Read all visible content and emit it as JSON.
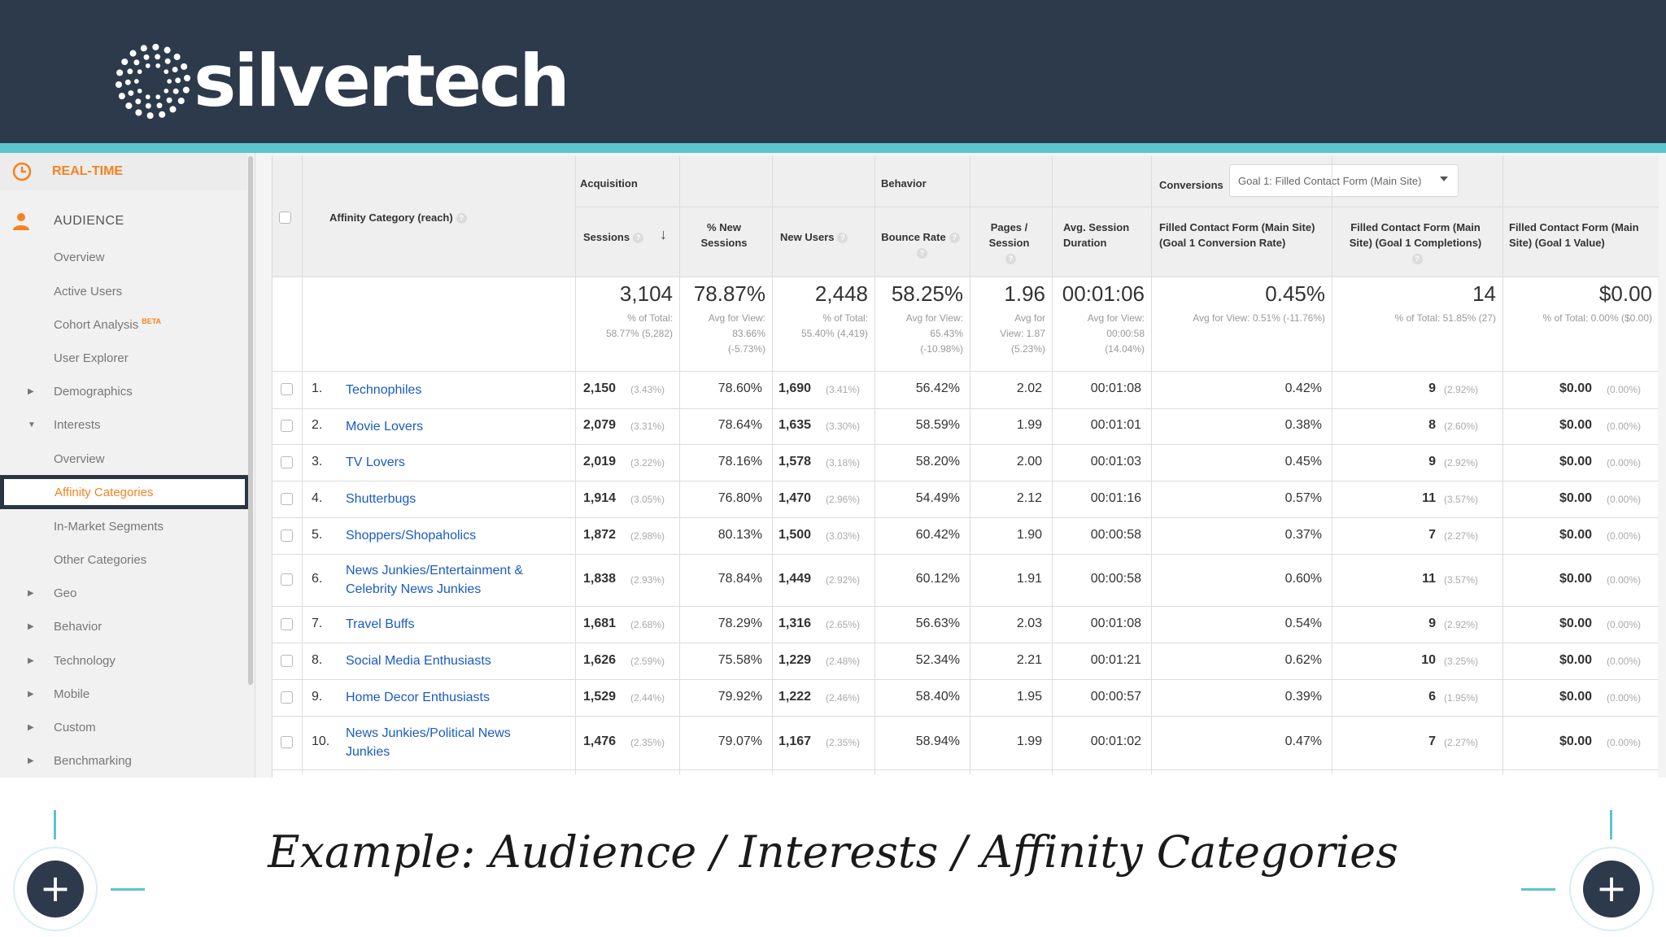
{
  "brand": {
    "name": "silvertech"
  },
  "caption": "Example: Audience / Interests / Affinity Categories",
  "colors": {
    "header_bg": "#2d3a4b",
    "accent_teal": "#5bc4cc",
    "ga_orange": "#f6821f",
    "link_blue": "#1a5bc4"
  },
  "sidebar": {
    "realtime": {
      "label": "REAL-TIME",
      "icon": "clock-icon"
    },
    "audience": {
      "label": "AUDIENCE",
      "icon": "person-icon"
    },
    "beta": "BETA",
    "items": [
      {
        "label": "Overview",
        "expander": false
      },
      {
        "label": "Active Users",
        "expander": false
      },
      {
        "label": "Cohort Analysis",
        "expander": false,
        "beta": true
      },
      {
        "label": "User Explorer",
        "expander": false
      },
      {
        "label": "Demographics",
        "expander": "collapsed"
      },
      {
        "label": "Interests",
        "expander": "expanded"
      },
      {
        "label": "Overview",
        "expander": false
      },
      {
        "label": "Affinity Categories",
        "expander": false,
        "selected": true
      },
      {
        "label": "In-Market Segments",
        "expander": false
      },
      {
        "label": "Other Categories",
        "expander": false
      },
      {
        "label": "Geo",
        "expander": "collapsed"
      },
      {
        "label": "Behavior",
        "expander": "collapsed"
      },
      {
        "label": "Technology",
        "expander": "collapsed"
      },
      {
        "label": "Mobile",
        "expander": "collapsed"
      },
      {
        "label": "Custom",
        "expander": "collapsed"
      },
      {
        "label": "Benchmarking",
        "expander": "collapsed"
      }
    ]
  },
  "table": {
    "dimension_header": "Affinity Category (reach)",
    "groups": {
      "acquisition": "Acquisition",
      "behavior": "Behavior",
      "conversions": "Conversions"
    },
    "goal_select": "Goal 1: Filled Contact Form (Main Site)",
    "columns": {
      "sessions": "Sessions",
      "new_sessions": [
        "% New",
        "Sessions"
      ],
      "new_users": "New Users",
      "bounce_rate": "Bounce Rate",
      "pages_session": [
        "Pages /",
        "Session"
      ],
      "avg_duration": [
        "Avg. Session",
        "Duration"
      ],
      "conv_rate": [
        "Filled Contact Form (Main Site)",
        "(Goal 1 Conversion Rate)"
      ],
      "completions": [
        "Filled Contact Form (Main",
        "Site) (Goal 1 Completions)"
      ],
      "value": [
        "Filled Contact Form (Main",
        "Site) (Goal 1 Value)"
      ]
    },
    "totals": {
      "sessions": "3,104",
      "sessions_sub": [
        "% of Total:",
        "58.77% (5,282)"
      ],
      "new_sessions": "78.87%",
      "new_sessions_sub": [
        "Avg for View:",
        "83.66%",
        "(-5.73%)"
      ],
      "new_users": "2,448",
      "new_users_sub": [
        "% of Total:",
        "55.40% (4,419)"
      ],
      "bounce_rate": "58.25%",
      "bounce_rate_sub": [
        "Avg for View:",
        "65.43%",
        "(-10.98%)"
      ],
      "pages_session": "1.96",
      "pages_session_sub": [
        "Avg for",
        "View: 1.87",
        "(5.23%)"
      ],
      "avg_duration": "00:01:06",
      "avg_duration_sub": [
        "Avg for View:",
        "00:00:58",
        "(14.04%)"
      ],
      "conv_rate": "0.45%",
      "conv_rate_sub": "Avg for View: 0.51% (-11.76%)",
      "completions": "14",
      "completions_sub": "% of Total: 51.85% (27)",
      "value": "$0.00",
      "value_sub": "% of Total: 0.00% ($0.00)"
    },
    "rows": [
      {
        "idx": "1.",
        "name": [
          "Technophiles"
        ],
        "sessions": "2,150",
        "sessions_pct": "(3.43%)",
        "new_sessions": "78.60%",
        "new_users": "1,690",
        "new_users_pct": "(3.41%)",
        "bounce_rate": "56.42%",
        "pages_session": "2.02",
        "avg_duration": "00:01:08",
        "conv_rate": "0.42%",
        "completions": "9",
        "completions_pct": "(2.92%)",
        "value": "$0.00",
        "value_pct": "(0.00%)"
      },
      {
        "idx": "2.",
        "name": [
          "Movie Lovers"
        ],
        "sessions": "2,079",
        "sessions_pct": "(3.31%)",
        "new_sessions": "78.64%",
        "new_users": "1,635",
        "new_users_pct": "(3.30%)",
        "bounce_rate": "58.59%",
        "pages_session": "1.99",
        "avg_duration": "00:01:01",
        "conv_rate": "0.38%",
        "completions": "8",
        "completions_pct": "(2.60%)",
        "value": "$0.00",
        "value_pct": "(0.00%)"
      },
      {
        "idx": "3.",
        "name": [
          "TV Lovers"
        ],
        "sessions": "2,019",
        "sessions_pct": "(3.22%)",
        "new_sessions": "78.16%",
        "new_users": "1,578",
        "new_users_pct": "(3.18%)",
        "bounce_rate": "58.20%",
        "pages_session": "2.00",
        "avg_duration": "00:01:03",
        "conv_rate": "0.45%",
        "completions": "9",
        "completions_pct": "(2.92%)",
        "value": "$0.00",
        "value_pct": "(0.00%)"
      },
      {
        "idx": "4.",
        "name": [
          "Shutterbugs"
        ],
        "sessions": "1,914",
        "sessions_pct": "(3.05%)",
        "new_sessions": "76.80%",
        "new_users": "1,470",
        "new_users_pct": "(2.96%)",
        "bounce_rate": "54.49%",
        "pages_session": "2.12",
        "avg_duration": "00:01:16",
        "conv_rate": "0.57%",
        "completions": "11",
        "completions_pct": "(3.57%)",
        "value": "$0.00",
        "value_pct": "(0.00%)"
      },
      {
        "idx": "5.",
        "name": [
          "Shoppers/Shopaholics"
        ],
        "sessions": "1,872",
        "sessions_pct": "(2.98%)",
        "new_sessions": "80.13%",
        "new_users": "1,500",
        "new_users_pct": "(3.03%)",
        "bounce_rate": "60.42%",
        "pages_session": "1.90",
        "avg_duration": "00:00:58",
        "conv_rate": "0.37%",
        "completions": "7",
        "completions_pct": "(2.27%)",
        "value": "$0.00",
        "value_pct": "(0.00%)"
      },
      {
        "idx": "6.",
        "name": [
          "News Junkies/Entertainment &",
          "Celebrity News Junkies"
        ],
        "sessions": "1,838",
        "sessions_pct": "(2.93%)",
        "new_sessions": "78.84%",
        "new_users": "1,449",
        "new_users_pct": "(2.92%)",
        "bounce_rate": "60.12%",
        "pages_session": "1.91",
        "avg_duration": "00:00:58",
        "conv_rate": "0.60%",
        "completions": "11",
        "completions_pct": "(3.57%)",
        "value": "$0.00",
        "value_pct": "(0.00%)"
      },
      {
        "idx": "7.",
        "name": [
          "Travel Buffs"
        ],
        "sessions": "1,681",
        "sessions_pct": "(2.68%)",
        "new_sessions": "78.29%",
        "new_users": "1,316",
        "new_users_pct": "(2.65%)",
        "bounce_rate": "56.63%",
        "pages_session": "2.03",
        "avg_duration": "00:01:08",
        "conv_rate": "0.54%",
        "completions": "9",
        "completions_pct": "(2.92%)",
        "value": "$0.00",
        "value_pct": "(0.00%)"
      },
      {
        "idx": "8.",
        "name": [
          "Social Media Enthusiasts"
        ],
        "sessions": "1,626",
        "sessions_pct": "(2.59%)",
        "new_sessions": "75.58%",
        "new_users": "1,229",
        "new_users_pct": "(2.48%)",
        "bounce_rate": "52.34%",
        "pages_session": "2.21",
        "avg_duration": "00:01:21",
        "conv_rate": "0.62%",
        "completions": "10",
        "completions_pct": "(3.25%)",
        "value": "$0.00",
        "value_pct": "(0.00%)"
      },
      {
        "idx": "9.",
        "name": [
          "Home Decor Enthusiasts"
        ],
        "sessions": "1,529",
        "sessions_pct": "(2.44%)",
        "new_sessions": "79.92%",
        "new_users": "1,222",
        "new_users_pct": "(2.46%)",
        "bounce_rate": "58.40%",
        "pages_session": "1.95",
        "avg_duration": "00:00:57",
        "conv_rate": "0.39%",
        "completions": "6",
        "completions_pct": "(1.95%)",
        "value": "$0.00",
        "value_pct": "(0.00%)"
      },
      {
        "idx": "10.",
        "name": [
          "News Junkies/Political News",
          "Junkies"
        ],
        "sessions": "1,476",
        "sessions_pct": "(2.35%)",
        "new_sessions": "79.07%",
        "new_users": "1,167",
        "new_users_pct": "(2.35%)",
        "bounce_rate": "58.94%",
        "pages_session": "1.99",
        "avg_duration": "00:01:02",
        "conv_rate": "0.47%",
        "completions": "7",
        "completions_pct": "(2.27%)",
        "value": "$0.00",
        "value_pct": "(0.00%)"
      }
    ]
  }
}
